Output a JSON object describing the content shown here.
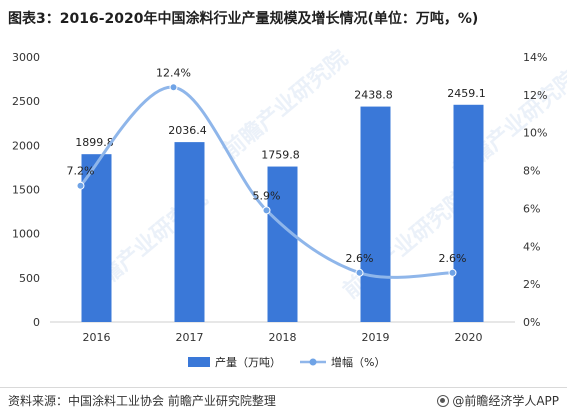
{
  "title": "图表3：2016-2020年中国涂料行业产量规模及增长情况(单位：万吨，%)",
  "source": "资料来源：中国涂料工业协会 前瞻产业研究院整理",
  "brand": "@前瞻经济学人APP",
  "watermark": "前瞻产业研究院",
  "colors": {
    "bar": "#3a78d8",
    "line": "#8fb6ea",
    "marker": "#6fa3e6",
    "axis_text": "#333333"
  },
  "chart_data": {
    "type": "bar",
    "categories": [
      "2016",
      "2017",
      "2018",
      "2019",
      "2020"
    ],
    "series": [
      {
        "name": "产量（万吨）",
        "type": "bar",
        "axis": "left",
        "values": [
          1899.8,
          2036.4,
          1759.8,
          2438.8,
          2459.1
        ],
        "labels": [
          "1899.8",
          "2036.4",
          "1759.8",
          "2438.8",
          "2459.1"
        ]
      },
      {
        "name": "增幅（%）",
        "type": "line",
        "axis": "right",
        "smooth": true,
        "values": [
          7.2,
          12.4,
          5.9,
          2.6,
          2.6
        ],
        "labels": [
          "7.2%",
          "12.4%",
          "5.9%",
          "2.6%",
          "2.6%"
        ]
      }
    ],
    "ylim_left": [
      0,
      3000
    ],
    "yticks_left": [
      "0",
      "500",
      "1000",
      "1500",
      "2000",
      "2500",
      "3000"
    ],
    "ylim_right": [
      0,
      14
    ],
    "yticks_right": [
      "0%",
      "2%",
      "4%",
      "6%",
      "8%",
      "10%",
      "12%",
      "14%"
    ],
    "grid": false,
    "legend_position": "bottom"
  }
}
